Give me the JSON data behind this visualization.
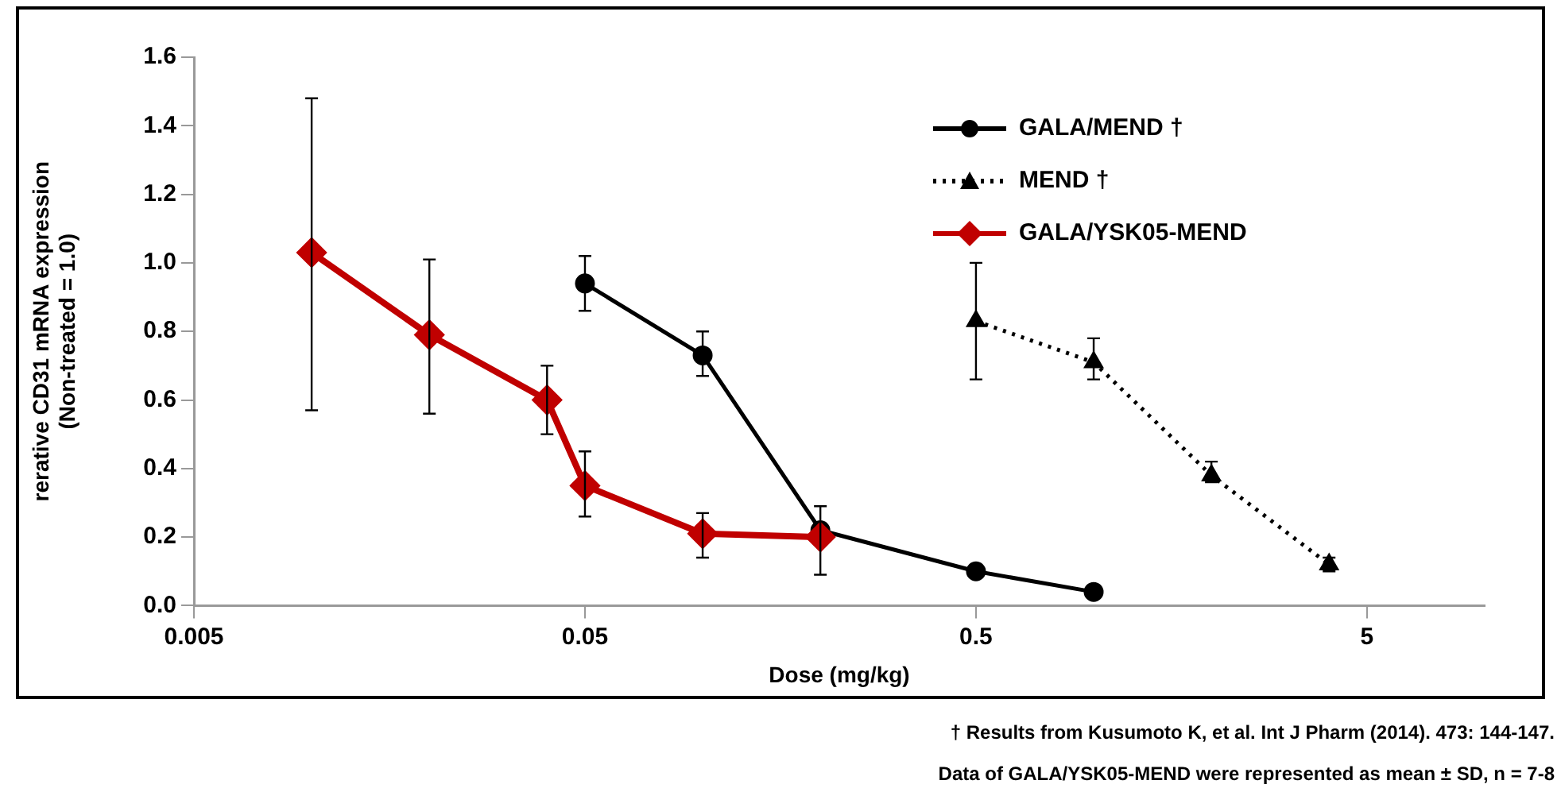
{
  "chart_data": {
    "type": "line",
    "xlabel": "Dose (mg/kg)",
    "ylabel": "rerative CD31 mRNA expression\n(Non-treated = 1.0)",
    "log": "x",
    "xlim": [
      0.005,
      10
    ],
    "xticks": [
      0.005,
      0.05,
      0.5,
      5
    ],
    "ylim": [
      0,
      1.6
    ],
    "yticks": [
      {
        "value": 0,
        "label": "0.0"
      },
      {
        "value": 0.2,
        "label": "0.2"
      },
      {
        "value": 0.4,
        "label": "0.4"
      },
      {
        "value": 0.6,
        "label": "0.6"
      },
      {
        "value": 0.8,
        "label": "0.8"
      },
      {
        "value": 1,
        "label": "1.0"
      },
      {
        "value": 1.2,
        "label": "1.2"
      },
      {
        "value": 1.4,
        "label": "1.4"
      },
      {
        "value": 1.6,
        "label": "1.6"
      }
    ],
    "grid": false,
    "legend": "top right",
    "series": [
      {
        "name": "GALA/MEND †",
        "color": "#000000",
        "marker": "circle",
        "line_style": "solid",
        "x": [
          0.05,
          0.1,
          0.2,
          0.5,
          1
        ],
        "values": [
          0.94,
          0.73,
          0.22,
          0.1,
          0.04
        ],
        "errors": [
          [
            0.86,
            1.02
          ],
          [
            0.67,
            0.8
          ],
          null,
          null,
          null
        ]
      },
      {
        "name": "MEND †",
        "color": "#000000",
        "marker": "triangle",
        "line_style": "dotted",
        "x": [
          0.5,
          1,
          2,
          4
        ],
        "values": [
          0.83,
          0.71,
          0.38,
          0.12
        ],
        "errors": [
          [
            0.66,
            1.0
          ],
          [
            0.66,
            0.78
          ],
          [
            0.36,
            0.42
          ],
          [
            0.1,
            0.14
          ]
        ]
      },
      {
        "name": "GALA/YSK05-MEND",
        "color": "#c00000",
        "marker": "diamond",
        "line_style": "solid",
        "x": [
          0.01,
          0.02,
          0.04,
          0.05,
          0.1,
          0.2
        ],
        "values": [
          1.03,
          0.79,
          0.6,
          0.35,
          0.21,
          0.2
        ],
        "errors": [
          [
            0.57,
            1.48
          ],
          [
            0.56,
            1.01
          ],
          [
            0.5,
            0.7
          ],
          [
            0.26,
            0.45
          ],
          [
            0.14,
            0.27
          ],
          [
            0.09,
            0.29
          ]
        ]
      }
    ],
    "annotations": [
      "† Results from Kusumoto K, et al. Int J Pharm (2014). 473: 144-147.",
      "Data  of GALA/YSK05-MEND were represented as mean ± SD, n = 7-8"
    ]
  }
}
